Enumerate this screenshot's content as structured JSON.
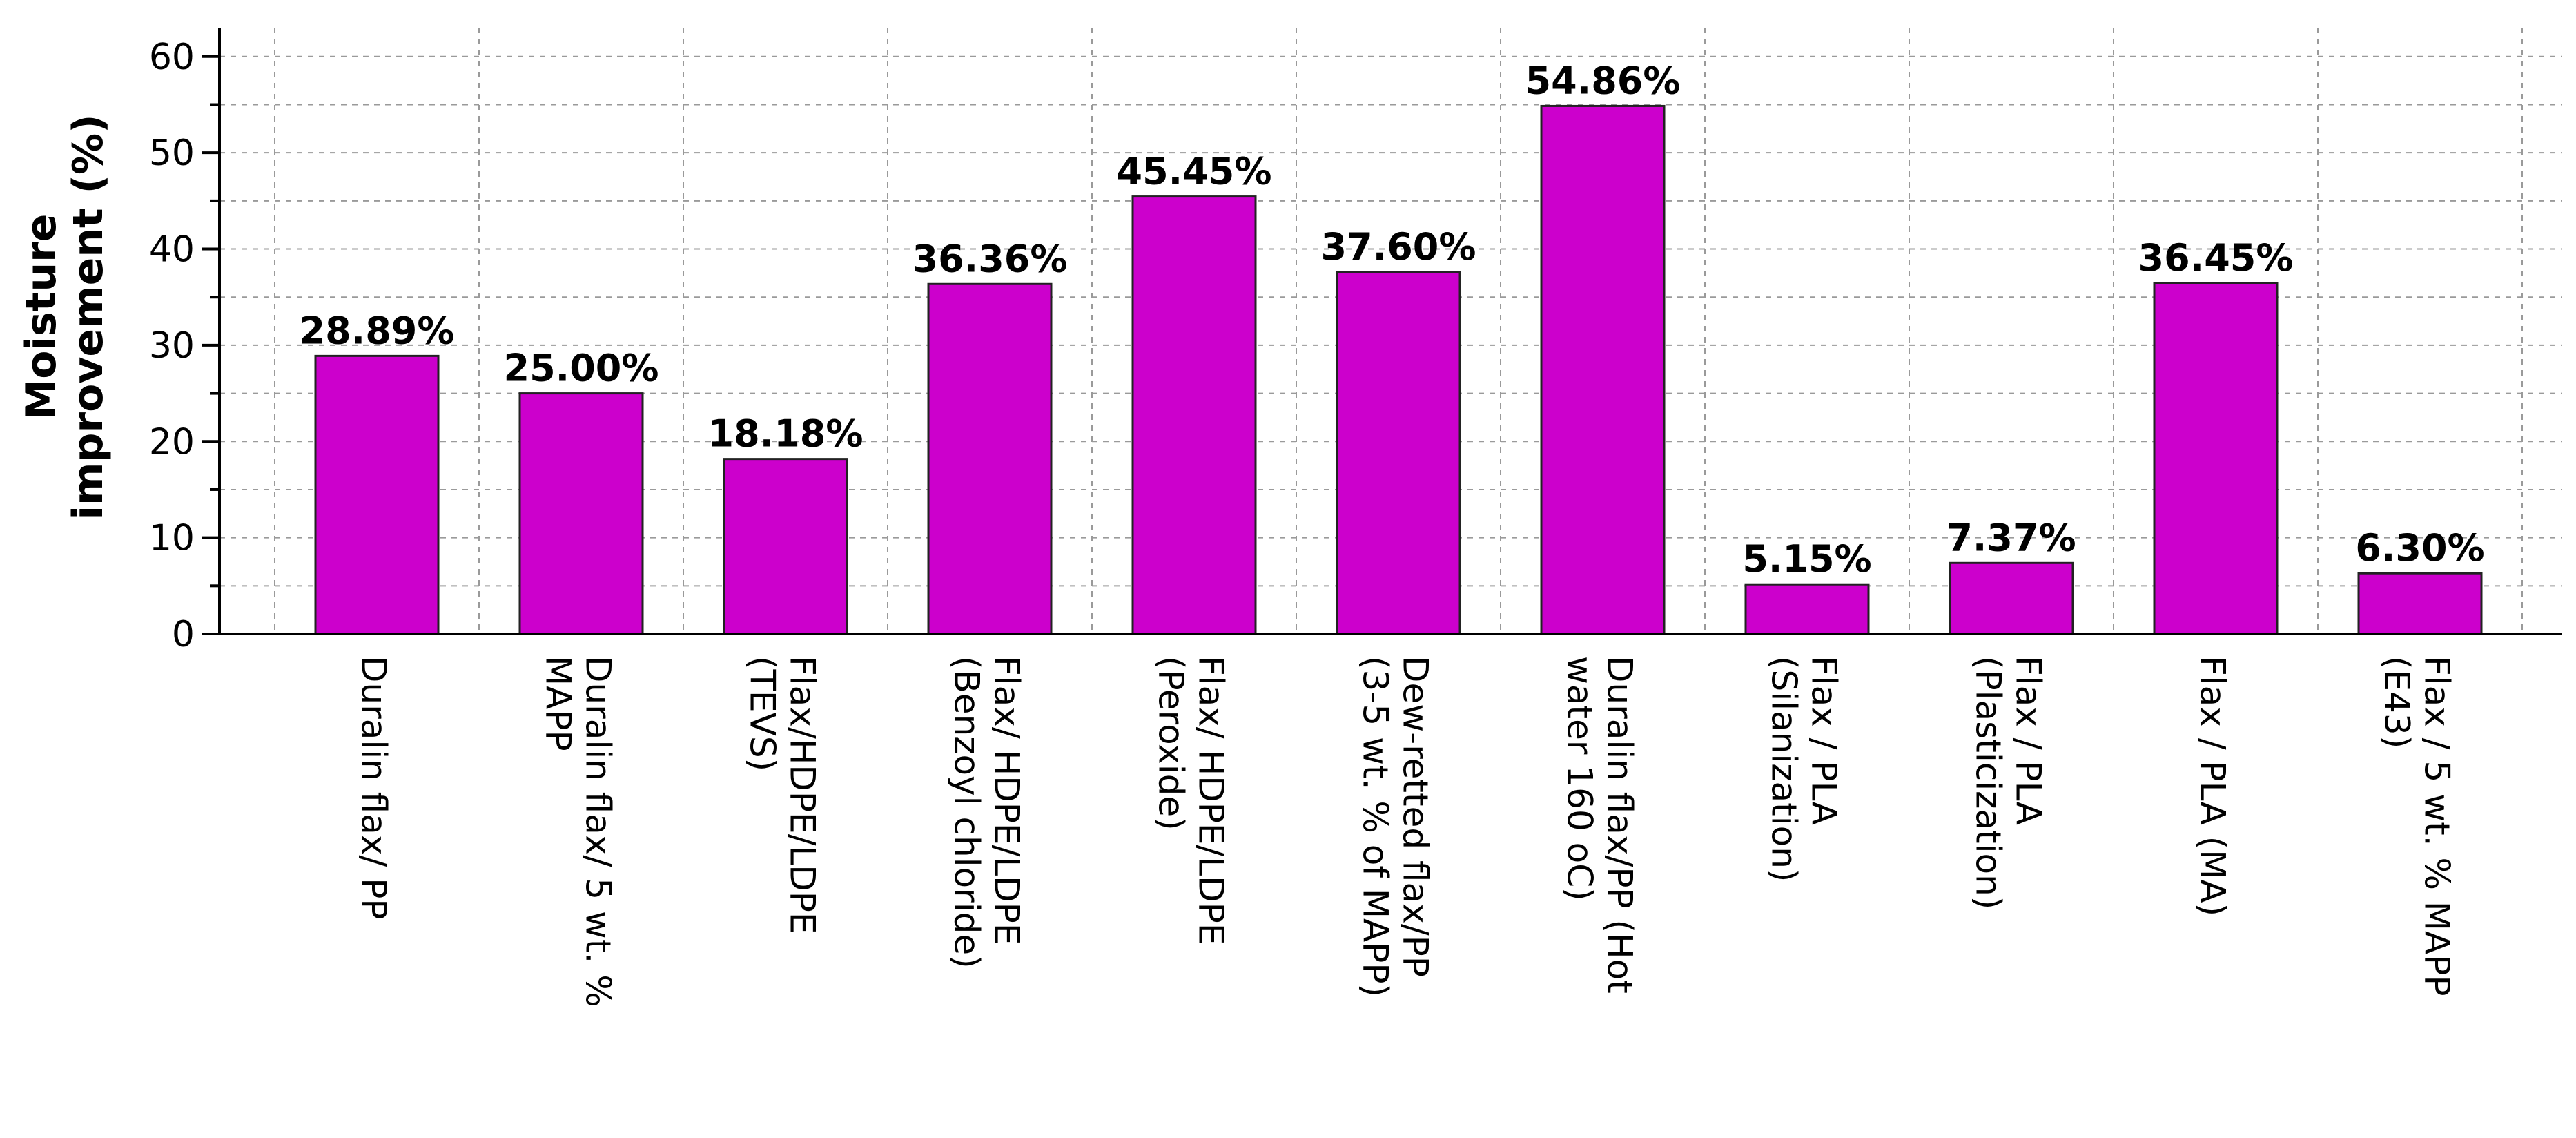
{
  "chart_data": {
    "type": "bar",
    "title": "",
    "xlabel": "",
    "ylabel": "Moisture improvement (%)",
    "ylabel_lines": [
      "Moisture",
      "improvement (%)"
    ],
    "ylim": [
      0,
      63
    ],
    "yticks": [
      0,
      10,
      20,
      30,
      40,
      50,
      60
    ],
    "grid": true,
    "legend": "none",
    "bar_color": "#CC00CC",
    "categories": [
      [
        "Duralin flax/ PP"
      ],
      [
        "Duralin flax/ 5 wt. %",
        "MAPP"
      ],
      [
        "Flax/HDPE/LDPE",
        "(TEVS)"
      ],
      [
        "Flax/ HDPE/LDPE",
        "(Benzoyl chloride)"
      ],
      [
        "Flax/ HDPE/LDPE",
        "(Peroxide)"
      ],
      [
        "Dew-retted flax/PP",
        "(3-5 wt. % of MAPP)"
      ],
      [
        "Duralin flax/PP (Hot",
        "water 160 oC)"
      ],
      [
        "Flax / PLA",
        "(Silanization)"
      ],
      [
        "Flax / PLA",
        "(Plasticization)"
      ],
      [
        "Flax / PLA (MA)"
      ],
      [
        "Flax / 5 wt. % MAPP",
        "(E43)"
      ]
    ],
    "values": [
      28.89,
      25.0,
      18.18,
      36.36,
      45.45,
      37.6,
      54.86,
      5.15,
      7.37,
      36.45,
      6.3
    ],
    "data_labels": [
      "28.89%",
      "25.00%",
      "18.18%",
      "36.36%",
      "45.45%",
      "37.60%",
      "54.86%",
      "5.15%",
      "7.37%",
      "36.45%",
      "6.30%"
    ]
  }
}
